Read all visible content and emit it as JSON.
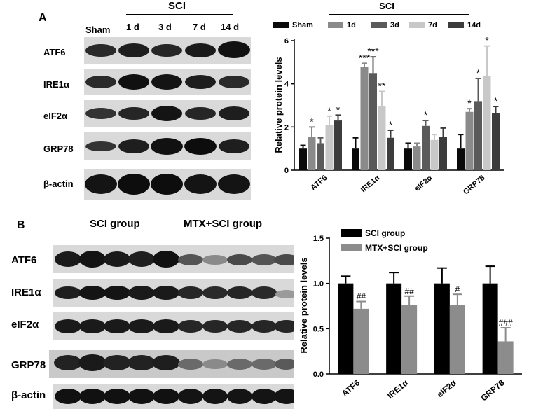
{
  "panel_a": {
    "letter": "A",
    "blot": {
      "group_label": "SCI",
      "lanes": [
        "Sham",
        "1 d",
        "3 d",
        "7 d",
        "14 d"
      ],
      "rows": [
        "ATF6",
        "IRE1α",
        "eIF2α",
        "GRP78",
        "β-actin"
      ]
    }
  },
  "panel_b": {
    "letter": "B",
    "blot": {
      "groups": [
        "SCI group",
        "MTX+SCI group"
      ],
      "rows": [
        "ATF6",
        "IRE1α",
        "eIF2α",
        "GRP78",
        "β-actin"
      ]
    }
  },
  "colors": {
    "sham": "#0a0a0a",
    "d1": "#8a8a8a",
    "d3": "#5a5a5a",
    "d7": "#c8c8c8",
    "d14": "#3c3c3c",
    "sci_group": "#000000",
    "mtx_group": "#8c8c8c"
  },
  "chart_data": [
    {
      "type": "bar",
      "title": "",
      "group_label": "SCI",
      "ylabel": "Relative protein levels",
      "xlabel": "",
      "ylim": [
        0,
        6
      ],
      "yticks": [
        0,
        2,
        4,
        6
      ],
      "legend_position": "top",
      "categories": [
        "ATF6",
        "IRE1α",
        "eIF2α",
        "GRP78"
      ],
      "series": [
        {
          "name": "Sham",
          "values": [
            1.0,
            1.0,
            1.0,
            1.0
          ],
          "errors": [
            0.15,
            0.5,
            0.25,
            0.65
          ],
          "marks": [
            "",
            "",
            "",
            ""
          ]
        },
        {
          "name": "1d",
          "values": [
            1.55,
            4.8,
            1.1,
            2.7
          ],
          "errors": [
            0.45,
            0.15,
            0.15,
            0.15
          ],
          "marks": [
            "*",
            "***",
            "",
            "*"
          ]
        },
        {
          "name": "3d",
          "values": [
            1.25,
            4.5,
            2.05,
            3.2
          ],
          "errors": [
            0.25,
            0.75,
            0.25,
            1.05
          ],
          "marks": [
            "",
            "***",
            "*",
            "*"
          ]
        },
        {
          "name": "7d",
          "values": [
            2.1,
            2.95,
            1.4,
            4.35
          ],
          "errors": [
            0.4,
            0.7,
            0.25,
            1.4
          ],
          "marks": [
            "*",
            "**",
            "",
            "*"
          ]
        },
        {
          "name": "14d",
          "values": [
            2.3,
            1.5,
            1.55,
            2.65
          ],
          "errors": [
            0.25,
            0.35,
            0.4,
            0.3
          ],
          "marks": [
            "*",
            "*",
            "",
            "*"
          ]
        }
      ]
    },
    {
      "type": "bar",
      "title": "",
      "ylabel": "Relative protein levels",
      "xlabel": "",
      "ylim": [
        0,
        1.5
      ],
      "yticks": [
        "0.0",
        "0.5",
        "1.0",
        "1.5"
      ],
      "legend_position": "top",
      "categories": [
        "ATF6",
        "IRE1α",
        "eIF2α",
        "GRP78"
      ],
      "series": [
        {
          "name": "SCI group",
          "values": [
            1.0,
            1.0,
            1.0,
            1.0
          ],
          "errors": [
            0.08,
            0.12,
            0.17,
            0.19
          ],
          "marks": [
            "",
            "",
            "",
            ""
          ]
        },
        {
          "name": "MTX+SCI group",
          "values": [
            0.72,
            0.76,
            0.76,
            0.36
          ],
          "errors": [
            0.08,
            0.1,
            0.12,
            0.15
          ],
          "marks": [
            "##",
            "##",
            "#",
            "###"
          ]
        }
      ]
    }
  ]
}
